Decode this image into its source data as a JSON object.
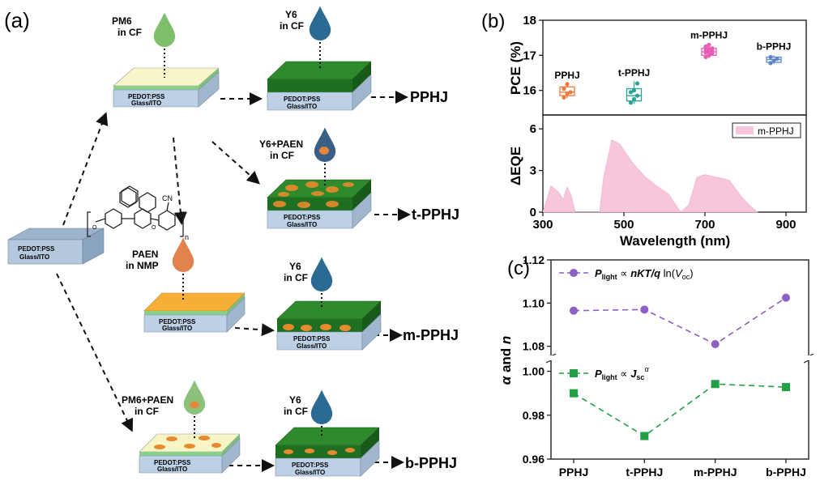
{
  "panel_a": {
    "label": "(a)",
    "substrate": {
      "top_label": "PEDOT:PSS",
      "bottom_label": "Glass/ITO"
    },
    "drops": {
      "pm6": "PM6\nin CF",
      "y6_1": "Y6\nin CF",
      "y6paen": "Y6+PAEN\nin CF",
      "paen": "PAEN\nin NMP",
      "y6_2": "Y6\nin CF",
      "pm6paen": "PM6+PAEN\nin CF",
      "y6_3": "Y6\nin CF"
    },
    "products": {
      "pphj": "PPHJ",
      "tpphj": "t-PPHJ",
      "mpphj": "m-PPHJ",
      "bpphj": "b-PPHJ"
    },
    "structure_letters": {
      "cn": "CN",
      "n": "n",
      "o": "O"
    }
  },
  "panel_b": {
    "label": "(b)",
    "pce_chart": {
      "type": "box",
      "ylabel": "PCE (%)",
      "ylim": [
        15.3,
        18
      ],
      "yticks": [
        16,
        17,
        18
      ],
      "categories": [
        "PPHJ",
        "t-PPHJ",
        "m-PPHJ",
        "b-PPHJ"
      ],
      "x": [
        360,
        525,
        710,
        870
      ],
      "colors": [
        "#f07a3a",
        "#2aa595",
        "#e65fb4",
        "#5b87c9"
      ],
      "stats": [
        {
          "q1": 15.85,
          "q3": 16.1,
          "median": 15.95,
          "whisker_low": 15.78,
          "whisker_high": 16.18,
          "points": [
            15.8,
            15.9,
            15.95,
            16.05,
            16.18
          ]
        },
        {
          "q1": 15.7,
          "q3": 16.05,
          "median": 15.85,
          "whisker_low": 15.62,
          "whisker_high": 16.25,
          "points": [
            15.65,
            15.75,
            15.85,
            15.95,
            16.0,
            16.2
          ]
        },
        {
          "q1": 17.0,
          "q3": 17.2,
          "median": 17.1,
          "whisker_low": 16.92,
          "whisker_high": 17.32,
          "points": [
            16.95,
            17.0,
            17.05,
            17.08,
            17.1,
            17.12,
            17.15,
            17.18,
            17.2,
            17.25,
            17.3
          ]
        },
        {
          "q1": 16.8,
          "q3": 16.95,
          "median": 16.88,
          "whisker_low": 16.75,
          "whisker_high": 17.0,
          "points": [
            16.78,
            16.85,
            16.9,
            16.95
          ]
        }
      ]
    },
    "eqe_chart": {
      "type": "area",
      "ylabel": "ΔEQE",
      "xlabel": "Wavelength (nm)",
      "xlim": [
        300,
        950
      ],
      "ylim": [
        0,
        7
      ],
      "xticks": [
        300,
        500,
        700,
        900
      ],
      "yticks": [
        0,
        3,
        6
      ],
      "legend": "m-PPHJ",
      "color": "#f7c6dc",
      "x": [
        300,
        320,
        340,
        350,
        360,
        370,
        380,
        440,
        450,
        470,
        490,
        520,
        550,
        580,
        610,
        640,
        660,
        680,
        700,
        730,
        760,
        790,
        810,
        830
      ],
      "y": [
        0,
        1.9,
        1.4,
        0.9,
        1.8,
        1.2,
        0,
        0,
        2.5,
        5.2,
        4.9,
        3.6,
        2.6,
        1.9,
        1.3,
        0,
        0.5,
        2.5,
        2.7,
        2.5,
        2.3,
        1.1,
        0.5,
        0
      ]
    }
  },
  "panel_c": {
    "label": "(c)",
    "ylabel_parts": {
      "alpha": "α",
      "and": " and ",
      "n": "n"
    },
    "categories": [
      "PPHJ",
      "t-PPHJ",
      "m-PPHJ",
      "b-PPHJ"
    ],
    "upper": {
      "ylim": [
        1.075,
        1.12
      ],
      "yticks": [
        1.08,
        1.1,
        1.12
      ]
    },
    "lower": {
      "ylim": [
        0.96,
        1.005
      ],
      "yticks": [
        0.96,
        0.98,
        1.0
      ]
    },
    "series": [
      {
        "name": "n",
        "color": "#8e5fc3",
        "marker": "circle",
        "values": [
          1.0965,
          1.097,
          1.081,
          1.1025
        ],
        "legend": {
          "p": "P",
          "sub": "light",
          "prop": " ∝ ",
          "expr": "nKT/q",
          "ln": " ln(",
          "v": "V",
          "vsub": "oc",
          "close": ")"
        }
      },
      {
        "name": "α",
        "color": "#22a046",
        "marker": "square",
        "values": [
          0.99,
          0.9705,
          0.9942,
          0.9928
        ],
        "legend": {
          "p": "P",
          "sub": "light",
          "prop": " ∝ ",
          "j": "J",
          "jsub": "sc",
          "sup": "α"
        }
      }
    ]
  }
}
